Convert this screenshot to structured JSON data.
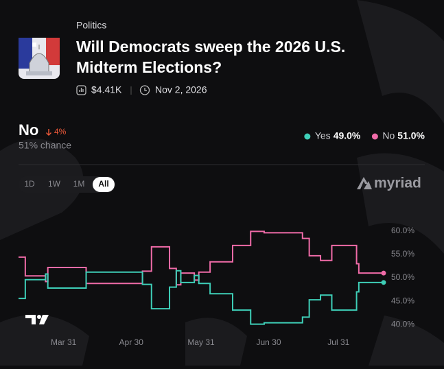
{
  "header": {
    "category": "Politics",
    "title_line1": "Will Democrats sweep the 2026 U.S.",
    "title_line2": "Midterm Elections?",
    "volume": "$4.41K",
    "end_date": "Nov 2, 2026"
  },
  "outcome": {
    "name": "No",
    "change": "4%",
    "chance": "51% chance"
  },
  "ranges": [
    "1D",
    "1W",
    "1M",
    "All"
  ],
  "brand": "myriad",
  "chart_data": {
    "type": "line",
    "step": true,
    "x": [
      70,
      73,
      82,
      83,
      100,
      125,
      129,
      137,
      140,
      142,
      148,
      150,
      155,
      165,
      173,
      179,
      196,
      199,
      204,
      209,
      220,
      221,
      232
    ],
    "series": [
      {
        "name": "Yes",
        "color": "#3ecfb8",
        "value_label": "49.0%",
        "values": [
          45.6,
          49.6,
          50.8,
          47.8,
          51.2,
          48.6,
          43.4,
          48,
          51.5,
          49,
          50.5,
          48.8,
          46.6,
          43.1,
          40.1,
          40.4,
          41.6,
          45.3,
          46.3,
          43.1,
          47,
          49,
          49
        ]
      },
      {
        "name": "No",
        "color": "#f06ba8",
        "value_label": "51.0%",
        "values": [
          54.4,
          50.4,
          49.2,
          52.2,
          48.8,
          51.4,
          56.6,
          52,
          48.5,
          51,
          49.5,
          51.2,
          53.4,
          56.9,
          59.9,
          59.6,
          58.4,
          54.7,
          53.7,
          56.9,
          53,
          51,
          51
        ]
      }
    ],
    "xlim": [
      70,
      232
    ],
    "xticks": [
      {
        "value": 90,
        "label": "Mar 31"
      },
      {
        "value": 120,
        "label": "Apr 30"
      },
      {
        "value": 151,
        "label": "May 31"
      },
      {
        "value": 181,
        "label": "Jun 30"
      },
      {
        "value": 212,
        "label": "Jul 31"
      }
    ],
    "ylim": [
      38,
      62
    ],
    "yticks": [
      {
        "value": 40,
        "label": "40.0%"
      },
      {
        "value": 45,
        "label": "45.0%"
      },
      {
        "value": 50,
        "label": "50.0%"
      },
      {
        "value": 55,
        "label": "55.0%"
      },
      {
        "value": 60,
        "label": "60.0%"
      }
    ],
    "grid": false
  }
}
